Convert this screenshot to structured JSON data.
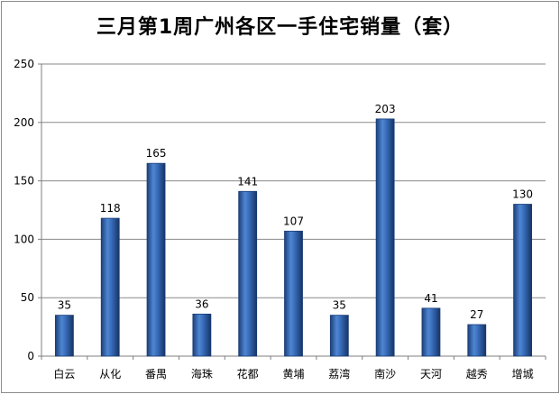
{
  "chart_data": {
    "type": "bar",
    "title": "三月第1周广州各区一手住宅销量（套）",
    "categories": [
      "白云",
      "从化",
      "番禺",
      "海珠",
      "花都",
      "黄埔",
      "荔湾",
      "南沙",
      "天河",
      "越秀",
      "增城"
    ],
    "values": [
      35,
      118,
      165,
      36,
      141,
      107,
      35,
      203,
      41,
      27,
      130
    ],
    "xlabel": "",
    "ylabel": "",
    "ylim": [
      0,
      250
    ],
    "yticks": [
      0,
      50,
      100,
      150,
      200,
      250
    ],
    "grid": true,
    "legend": "none",
    "bar_color": "#2e5fa8"
  }
}
